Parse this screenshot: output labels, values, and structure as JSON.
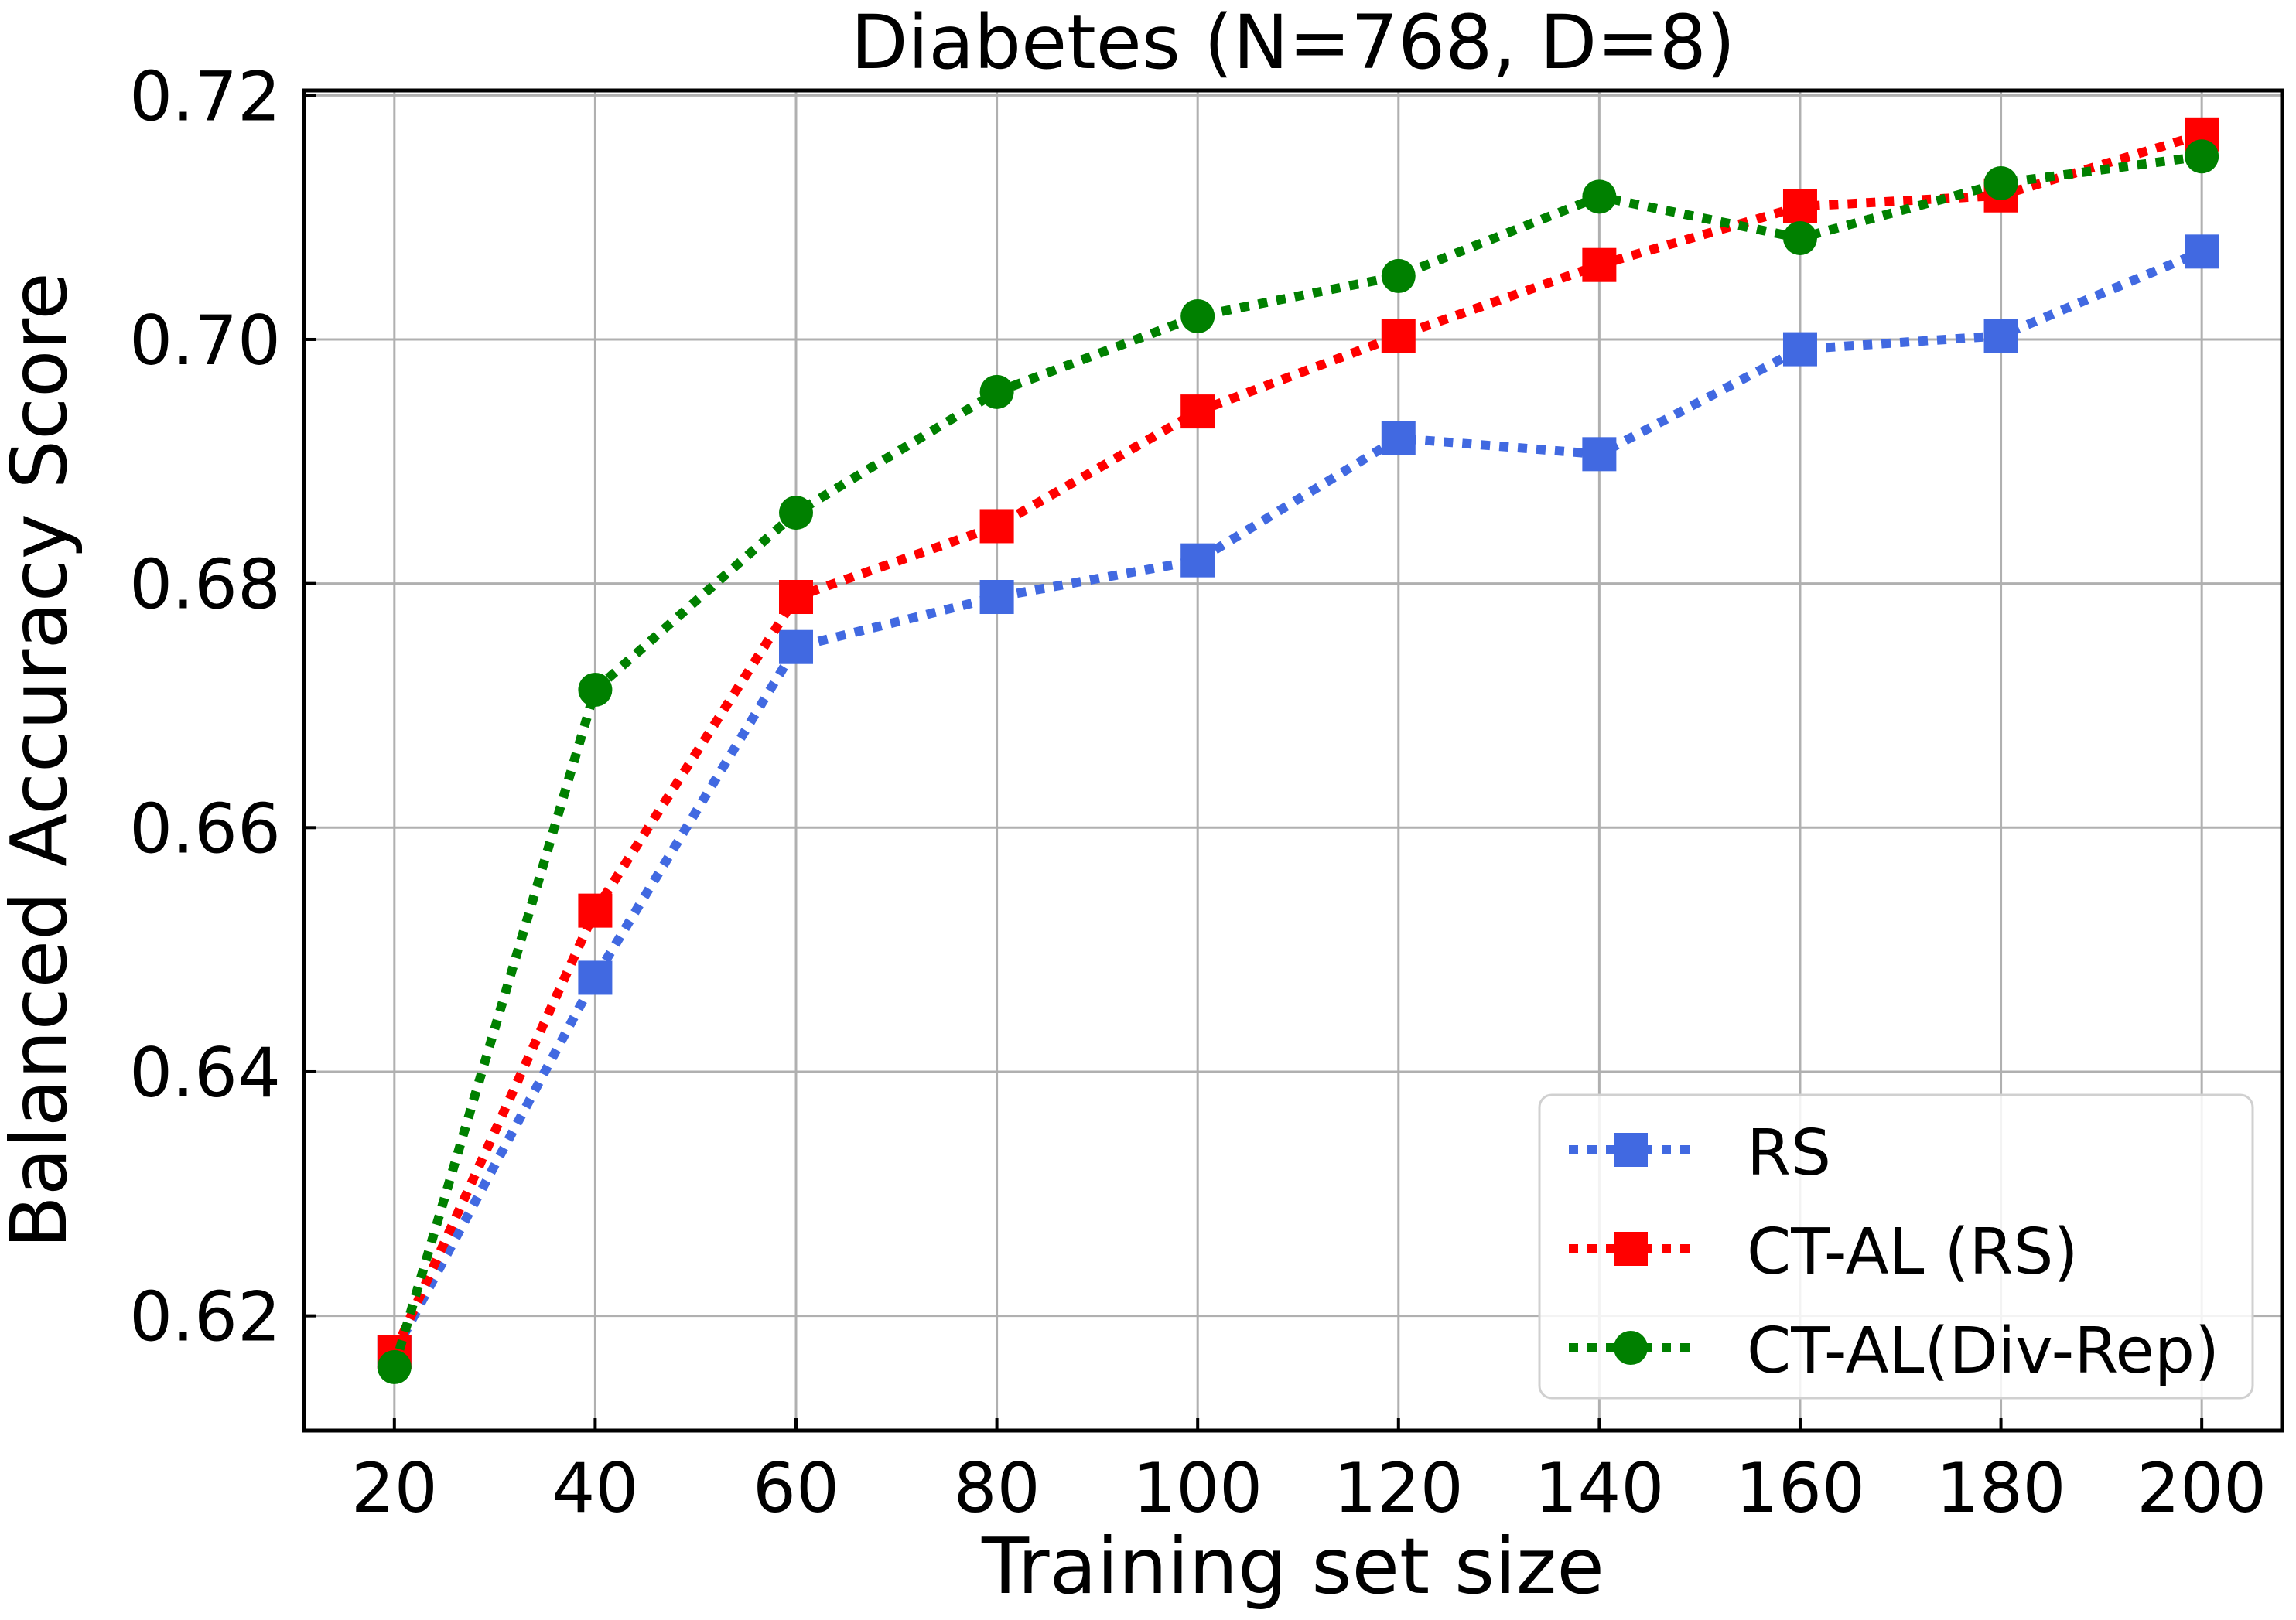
{
  "chart_data": {
    "type": "line",
    "title": "Diabetes (N=768, D=8)",
    "xlabel": "Training set size",
    "ylabel": "Balanced Accuracy Score",
    "x": [
      20,
      40,
      60,
      80,
      100,
      120,
      140,
      160,
      180,
      200
    ],
    "xlim": [
      11,
      208
    ],
    "ylim": [
      0.6106,
      0.7204
    ],
    "xticks": [
      20,
      40,
      60,
      80,
      100,
      120,
      140,
      160,
      180,
      200
    ],
    "xtick_labels": [
      "20",
      "40",
      "60",
      "80",
      "100",
      "120",
      "140",
      "160",
      "180",
      "200"
    ],
    "yticks": [
      0.62,
      0.64,
      0.66,
      0.68,
      0.7,
      0.72
    ],
    "ytick_labels": [
      "0.62",
      "0.64",
      "0.66",
      "0.68",
      "0.70",
      "0.72"
    ],
    "grid": true,
    "legend_position": "bottom-right",
    "series": [
      {
        "name": "RS",
        "color": "#4169E1",
        "marker": "square",
        "linestyle": "dotted",
        "values": [
          0.617,
          0.6477,
          0.6748,
          0.6789,
          0.6819,
          0.6919,
          0.6906,
          0.6992,
          0.7003,
          0.7072
        ]
      },
      {
        "name": "CT-AL (RS)",
        "color": "#FF0000",
        "marker": "square",
        "linestyle": "dotted",
        "values": [
          0.617,
          0.6532,
          0.6789,
          0.6847,
          0.6941,
          0.7003,
          0.7061,
          0.7109,
          0.7118,
          0.7168
        ]
      },
      {
        "name": "CT-AL(Div-Rep)",
        "color": "#008000",
        "marker": "circle",
        "linestyle": "dotted",
        "values": [
          0.6158,
          0.6713,
          0.6858,
          0.6957,
          0.7019,
          0.7052,
          0.7117,
          0.7083,
          0.7128,
          0.715
        ]
      }
    ]
  }
}
